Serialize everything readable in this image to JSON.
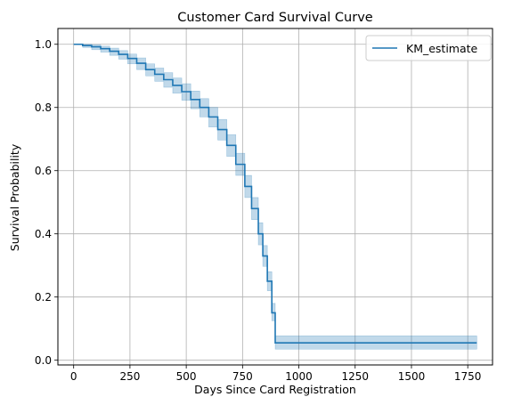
{
  "chart_data": {
    "type": "line",
    "title": "Customer Card Survival Curve",
    "xlabel": "Days Since Card Registration",
    "ylabel": "Survival Probability",
    "xlim": [
      -70,
      1860
    ],
    "ylim": [
      -0.015,
      1.05
    ],
    "xticks": [
      0,
      250,
      500,
      750,
      1000,
      1250,
      1500,
      1750
    ],
    "xtick_labels": [
      "0",
      "250",
      "500",
      "750",
      "1000",
      "1250",
      "1500",
      "1750"
    ],
    "yticks": [
      0.0,
      0.2,
      0.4,
      0.6,
      0.8,
      1.0
    ],
    "ytick_labels": [
      "0.0",
      "0.2",
      "0.4",
      "0.6",
      "0.8",
      "1.0"
    ],
    "grid": true,
    "legend_position": "top-right",
    "series": [
      {
        "name": "KM_estimate",
        "color": "#1f77b4",
        "step": true,
        "x": [
          0,
          40,
          80,
          120,
          160,
          200,
          240,
          280,
          320,
          360,
          400,
          440,
          480,
          520,
          560,
          600,
          640,
          680,
          720,
          760,
          790,
          820,
          840,
          860,
          880,
          895,
          1790
        ],
        "y": [
          1.0,
          0.996,
          0.992,
          0.986,
          0.978,
          0.968,
          0.955,
          0.94,
          0.92,
          0.905,
          0.888,
          0.87,
          0.85,
          0.825,
          0.8,
          0.77,
          0.73,
          0.68,
          0.62,
          0.55,
          0.48,
          0.4,
          0.33,
          0.25,
          0.15,
          0.055,
          0.055
        ],
        "ci_lower": [
          1.0,
          0.99,
          0.983,
          0.975,
          0.965,
          0.953,
          0.938,
          0.92,
          0.9,
          0.883,
          0.864,
          0.845,
          0.823,
          0.796,
          0.77,
          0.738,
          0.697,
          0.645,
          0.585,
          0.515,
          0.445,
          0.365,
          0.297,
          0.22,
          0.125,
          0.035,
          0.035
        ],
        "ci_upper": [
          1.0,
          1.0,
          0.998,
          0.994,
          0.988,
          0.98,
          0.969,
          0.957,
          0.938,
          0.925,
          0.91,
          0.893,
          0.875,
          0.852,
          0.828,
          0.8,
          0.762,
          0.714,
          0.655,
          0.585,
          0.515,
          0.435,
          0.363,
          0.28,
          0.18,
          0.077,
          0.077
        ]
      }
    ]
  }
}
